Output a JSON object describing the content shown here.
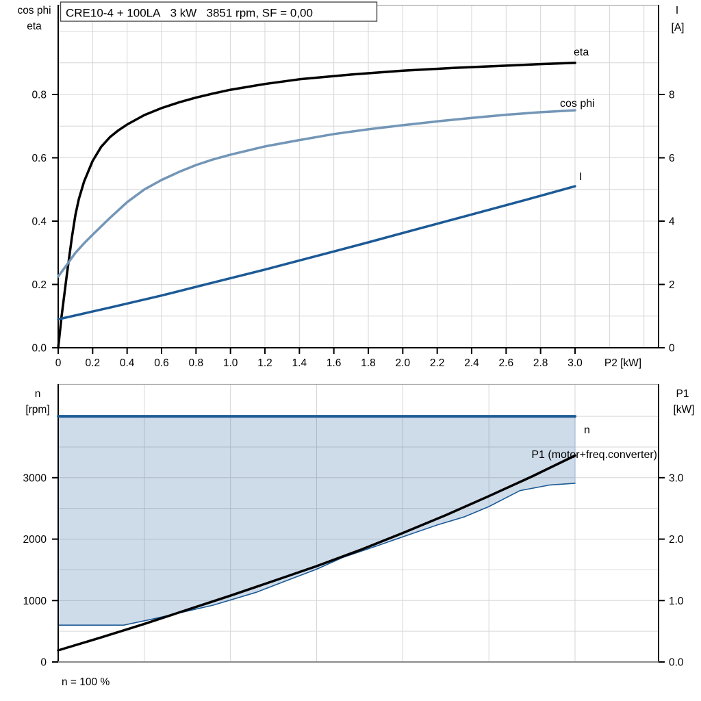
{
  "chart_data": [
    {
      "type": "line",
      "title": "CRE10-4 + 100LA   3 kW   3851 rpm, SF = 0,00",
      "x_axis": {
        "title": "P2 [kW]",
        "min": 0,
        "max": 3.486,
        "grid_step": 0.2,
        "tick_values": [
          0,
          0.2,
          0.4,
          0.6,
          0.8,
          1.0,
          1.2,
          1.4,
          1.6,
          1.8,
          2.0,
          2.2,
          2.4,
          2.6,
          2.8,
          3.0
        ],
        "tick_labels": [
          "0",
          "0.2",
          "0.4",
          "0.6",
          "0.8",
          "1.0",
          "1.2",
          "1.4",
          "1.6",
          "1.8",
          "2.0",
          "2.2",
          "2.4",
          "2.6",
          "2.8",
          "3.0"
        ]
      },
      "y_axis_left": {
        "title_lines": [
          "cos phi",
          "eta"
        ],
        "min": 0,
        "max": 1.081,
        "grid_step": 0.1,
        "tick_values": [
          0,
          0.2,
          0.4,
          0.6,
          0.8
        ],
        "tick_labels": [
          "0.0",
          "0.2",
          "0.4",
          "0.6",
          "0.8"
        ]
      },
      "y_axis_right": {
        "title_lines": [
          "I",
          "[A]"
        ],
        "min": 0,
        "max": 10.81,
        "tick_values": [
          0,
          2,
          4,
          6,
          8
        ],
        "tick_labels": [
          "0",
          "2",
          "4",
          "6",
          "8"
        ]
      },
      "grid": true,
      "legend_position": "inline-curve-labels",
      "series": [
        {
          "name": "eta",
          "label": "eta",
          "axis": "left",
          "color": "#000000",
          "width": 3.5,
          "points": [
            [
              0,
              0
            ],
            [
              0.02,
              0.1
            ],
            [
              0.05,
              0.23
            ],
            [
              0.08,
              0.35
            ],
            [
              0.1,
              0.42
            ],
            [
              0.12,
              0.47
            ],
            [
              0.15,
              0.525
            ],
            [
              0.2,
              0.59
            ],
            [
              0.25,
              0.635
            ],
            [
              0.3,
              0.665
            ],
            [
              0.35,
              0.687
            ],
            [
              0.4,
              0.705
            ],
            [
              0.5,
              0.735
            ],
            [
              0.6,
              0.757
            ],
            [
              0.7,
              0.775
            ],
            [
              0.8,
              0.79
            ],
            [
              0.9,
              0.803
            ],
            [
              1.0,
              0.815
            ],
            [
              1.2,
              0.833
            ],
            [
              1.4,
              0.848
            ],
            [
              1.7,
              0.863
            ],
            [
              2.0,
              0.875
            ],
            [
              2.3,
              0.884
            ],
            [
              2.6,
              0.891
            ],
            [
              2.8,
              0.896
            ],
            [
              3.0,
              0.9
            ]
          ]
        },
        {
          "name": "cos-phi",
          "label": "cos phi",
          "axis": "left",
          "color": "#7396b7",
          "width": 3.5,
          "points": [
            [
              0,
              0.225
            ],
            [
              0.05,
              0.262
            ],
            [
              0.1,
              0.3
            ],
            [
              0.15,
              0.33
            ],
            [
              0.2,
              0.357
            ],
            [
              0.3,
              0.41
            ],
            [
              0.4,
              0.46
            ],
            [
              0.5,
              0.5
            ],
            [
              0.6,
              0.53
            ],
            [
              0.7,
              0.555
            ],
            [
              0.8,
              0.577
            ],
            [
              0.9,
              0.595
            ],
            [
              1.0,
              0.61
            ],
            [
              1.2,
              0.636
            ],
            [
              1.4,
              0.656
            ],
            [
              1.6,
              0.675
            ],
            [
              1.8,
              0.69
            ],
            [
              2.0,
              0.703
            ],
            [
              2.2,
              0.715
            ],
            [
              2.4,
              0.726
            ],
            [
              2.6,
              0.736
            ],
            [
              2.8,
              0.744
            ],
            [
              3.0,
              0.75
            ]
          ]
        },
        {
          "name": "I",
          "label": "I",
          "axis": "right",
          "color": "#1c5a96",
          "width": 3.5,
          "points": [
            [
              0,
              0.9
            ],
            [
              0.3,
              1.27
            ],
            [
              0.6,
              1.65
            ],
            [
              0.9,
              2.06
            ],
            [
              1.2,
              2.47
            ],
            [
              1.5,
              2.9
            ],
            [
              1.8,
              3.33
            ],
            [
              2.1,
              3.77
            ],
            [
              2.4,
              4.21
            ],
            [
              2.7,
              4.65
            ],
            [
              3.0,
              5.1
            ]
          ]
        }
      ]
    },
    {
      "type": "line+area",
      "x_axis": {
        "min": 0,
        "max": 3.486,
        "grid_step": 0.5,
        "tick_values": [],
        "tick_labels": []
      },
      "y_axis_left": {
        "title_lines": [
          "n",
          "[rpm]"
        ],
        "min": 0,
        "max": 4460,
        "grid_step": 500,
        "tick_values": [
          0,
          1000,
          2000,
          3000
        ],
        "tick_labels": [
          "0",
          "1000",
          "2000",
          "3000"
        ]
      },
      "y_axis_right": {
        "title_lines": [
          "P1",
          "[kW]"
        ],
        "min": 0,
        "max": 4.46,
        "tick_values": [
          0,
          1,
          2,
          3
        ],
        "tick_labels": [
          "0.0",
          "1.0",
          "2.0",
          "3.0"
        ]
      },
      "annotation": "n = 100 %",
      "area": {
        "name": "speed-control-range",
        "fill": "rgba(31,92,153,0.22)",
        "upper_rpm": 4000,
        "x_range": [
          0,
          3.0
        ],
        "lower_boundary_rpm": [
          [
            0,
            600
          ],
          [
            0.38,
            600
          ],
          [
            0.55,
            700
          ],
          [
            0.9,
            925
          ],
          [
            1.15,
            1135
          ],
          [
            1.33,
            1330
          ],
          [
            1.5,
            1510
          ],
          [
            1.65,
            1700
          ],
          [
            1.85,
            1890
          ],
          [
            2.05,
            2085
          ],
          [
            2.2,
            2230
          ],
          [
            2.36,
            2365
          ],
          [
            2.5,
            2530
          ],
          [
            2.68,
            2790
          ],
          [
            2.85,
            2880
          ],
          [
            3.0,
            2910
          ]
        ]
      },
      "series": [
        {
          "name": "n",
          "label": "n",
          "axis": "left",
          "color": "#1c5a96",
          "width": 4,
          "points": [
            [
              0,
              4000
            ],
            [
              3.0,
              4000
            ]
          ]
        },
        {
          "name": "P1",
          "label": "P1 (motor+freq.converter)",
          "axis": "right",
          "color": "#000000",
          "width": 3.5,
          "points": [
            [
              0,
              0.19
            ],
            [
              0.25,
              0.4
            ],
            [
              0.5,
              0.62
            ],
            [
              0.75,
              0.85
            ],
            [
              1.0,
              1.08
            ],
            [
              1.25,
              1.32
            ],
            [
              1.5,
              1.56
            ],
            [
              1.75,
              1.82
            ],
            [
              2.0,
              2.1
            ],
            [
              2.25,
              2.39
            ],
            [
              2.5,
              2.7
            ],
            [
              2.75,
              3.02
            ],
            [
              3.0,
              3.36
            ]
          ]
        }
      ]
    }
  ]
}
